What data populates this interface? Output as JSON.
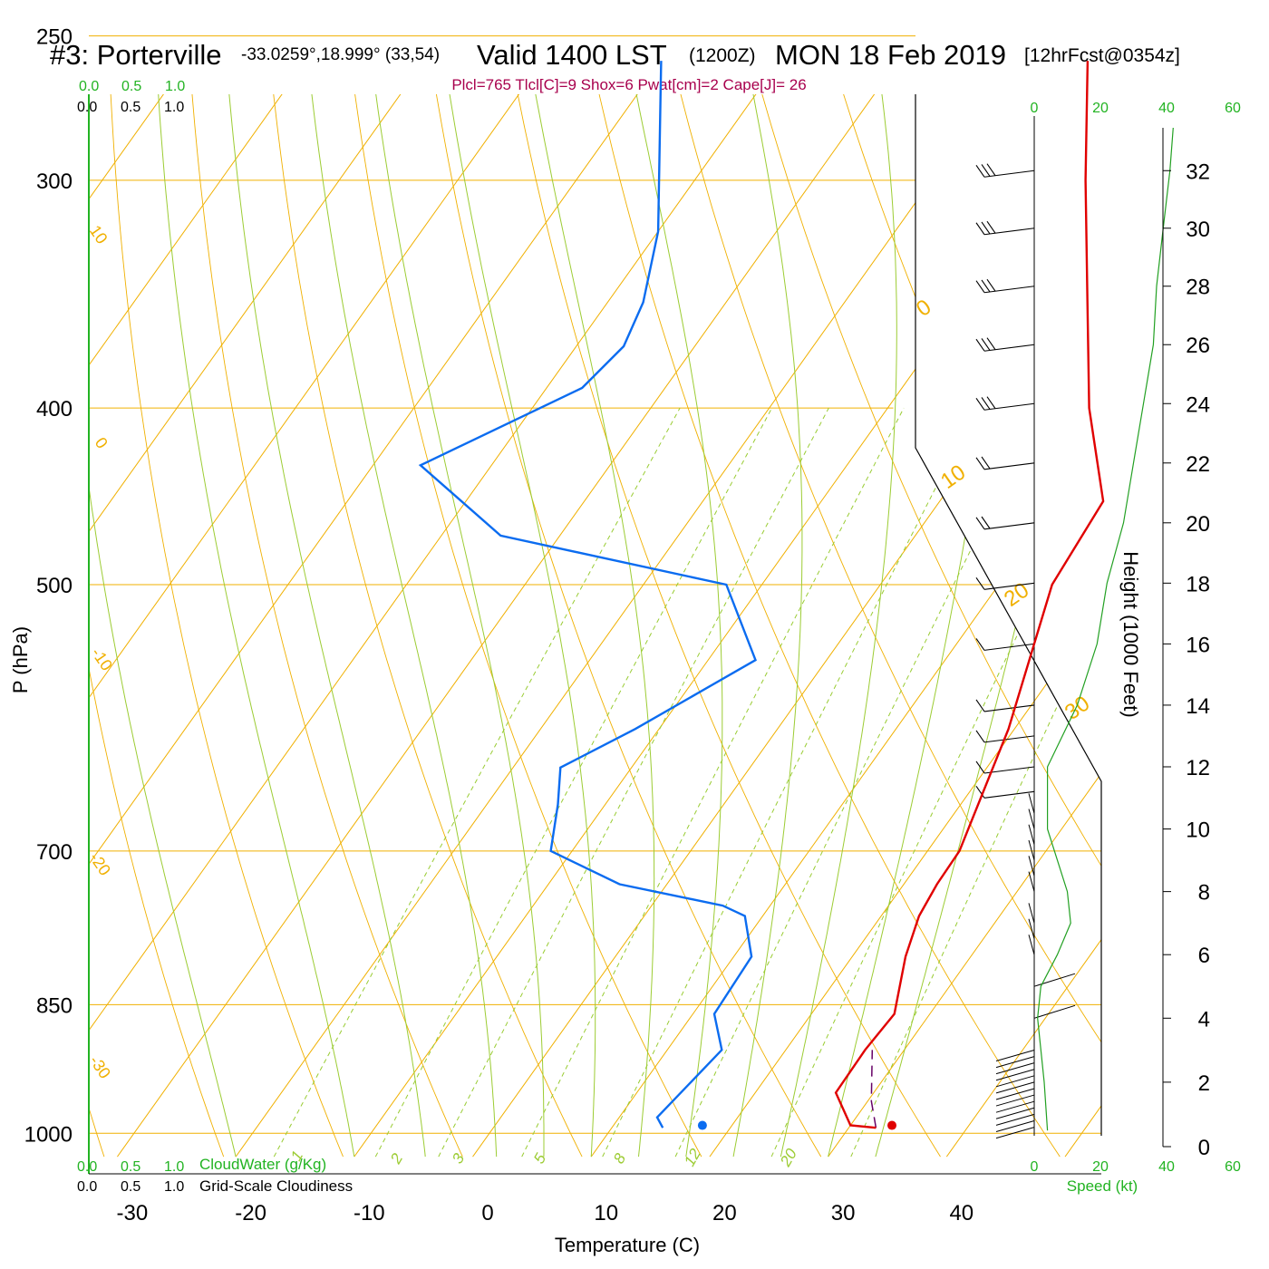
{
  "title": {
    "station": "#3: Porterville",
    "coords": "-33.0259°,18.999° (33,54)",
    "valid": "Valid 1400 LST",
    "zulu": "(1200Z)",
    "date": "MON 18 Feb 2019",
    "forecast": "[12hrFcst@0354z]"
  },
  "indices_text": "Plcl=765 Tlcl[C]=9 Shox=6 Pwat[cm]=2 Cape[J]= 26",
  "colors": {
    "temperature": "#e00000",
    "dewpoint": "#0b6cf0",
    "isotherm": "#f0b000",
    "moist_adiabat": "#9ccc33",
    "mixing_ratio": "#99cc33",
    "parcel": "#660066",
    "windspeed": "#22a022",
    "indices": "#a8004d"
  },
  "labels": {
    "ylabel": "P (hPa)",
    "xlabel": "Temperature (C)",
    "height_label": "Height (1000 Feet)",
    "cloudwater": "CloudWater (g/Kg)",
    "cloudiness": "Grid-Scale Cloudiness",
    "speed": "Speed (kt)",
    "scale_ticks": [
      "0.0",
      "0.5",
      "1.0"
    ]
  },
  "chart_data": {
    "type": "line",
    "subtype": "skew-T log-P",
    "pressure_ticks": [
      250,
      300,
      400,
      500,
      700,
      850,
      1000
    ],
    "temperature_ticks": [
      -30,
      -20,
      -10,
      0,
      10,
      20,
      30,
      40
    ],
    "height_ticks_kft": [
      0,
      2,
      4,
      6,
      8,
      10,
      12,
      14,
      16,
      18,
      20,
      22,
      24,
      26,
      28,
      30,
      32
    ],
    "speed_ticks_kt": [
      0,
      20,
      40,
      60
    ],
    "isotherm_labels": [
      "10",
      "0",
      "-10",
      "-20",
      "-30",
      "0",
      "10",
      "20",
      "30"
    ],
    "mixing_ratio_labels": [
      "1",
      "2",
      "3",
      "5",
      "8",
      "12",
      "20"
    ],
    "xlim": [
      -34,
      36
    ],
    "ylim": [
      1030,
      250
    ],
    "series": [
      {
        "role": "temperature",
        "points": [
          {
            "p": 993,
            "t": 32.3
          },
          {
            "p": 990,
            "t": 30.0
          },
          {
            "p": 950,
            "t": 26.8
          },
          {
            "p": 900,
            "t": 26.7
          },
          {
            "p": 860,
            "t": 27.0
          },
          {
            "p": 800,
            "t": 24.5
          },
          {
            "p": 760,
            "t": 23.2
          },
          {
            "p": 730,
            "t": 22.8
          },
          {
            "p": 700,
            "t": 22.7
          },
          {
            "p": 600,
            "t": 19.5
          },
          {
            "p": 500,
            "t": 14.5
          },
          {
            "p": 450,
            "t": 13.8
          },
          {
            "p": 400,
            "t": 7.0
          },
          {
            "p": 350,
            "t": 0.5
          },
          {
            "p": 300,
            "t": -7.0
          },
          {
            "p": 258,
            "t": -14.0
          }
        ]
      },
      {
        "role": "dewpoint",
        "points": [
          {
            "p": 993,
            "t": 14.3
          },
          {
            "p": 980,
            "t": 13.2
          },
          {
            "p": 900,
            "t": 14.6
          },
          {
            "p": 860,
            "t": 11.8
          },
          {
            "p": 800,
            "t": 11.5
          },
          {
            "p": 760,
            "t": 8.5
          },
          {
            "p": 750,
            "t": 6.0
          },
          {
            "p": 730,
            "t": -4.0
          },
          {
            "p": 700,
            "t": -11.8
          },
          {
            "p": 660,
            "t": -14.0
          },
          {
            "p": 630,
            "t": -16.0
          },
          {
            "p": 600,
            "t": -12.0
          },
          {
            "p": 550,
            "t": -6.0
          },
          {
            "p": 500,
            "t": -13.0
          },
          {
            "p": 470,
            "t": -35.0
          },
          {
            "p": 430,
            "t": -46.0
          },
          {
            "p": 390,
            "t": -37.0
          },
          {
            "p": 370,
            "t": -36.0
          },
          {
            "p": 350,
            "t": -37.0
          },
          {
            "p": 320,
            "t": -40.0
          },
          {
            "p": 258,
            "t": -50.0
          }
        ]
      },
      {
        "role": "parcel",
        "points": [
          {
            "p": 993,
            "t": 32.3
          },
          {
            "p": 960,
            "t": 30.3
          },
          {
            "p": 900,
            "t": 27.3
          }
        ]
      }
    ],
    "surface_markers": {
      "temperature": 33.5,
      "dewpoint": 17.5,
      "p": 990
    },
    "windspeed_profile": [
      {
        "kft": 0.5,
        "kt": 4
      },
      {
        "kft": 2,
        "kt": 3
      },
      {
        "kft": 4,
        "kt": 1
      },
      {
        "kft": 5,
        "kt": 2
      },
      {
        "kft": 6,
        "kt": 7
      },
      {
        "kft": 7,
        "kt": 11
      },
      {
        "kft": 8,
        "kt": 10
      },
      {
        "kft": 10,
        "kt": 4
      },
      {
        "kft": 12,
        "kt": 4
      },
      {
        "kft": 14,
        "kt": 13
      },
      {
        "kft": 16,
        "kt": 19
      },
      {
        "kft": 18,
        "kt": 22
      },
      {
        "kft": 20,
        "kt": 27
      },
      {
        "kft": 22,
        "kt": 30
      },
      {
        "kft": 24,
        "kt": 33
      },
      {
        "kft": 26,
        "kt": 36
      },
      {
        "kft": 28,
        "kt": 37
      },
      {
        "kft": 30,
        "kt": 39
      },
      {
        "kft": 32,
        "kt": 41
      },
      {
        "kft": 33.5,
        "kt": 42
      }
    ]
  }
}
